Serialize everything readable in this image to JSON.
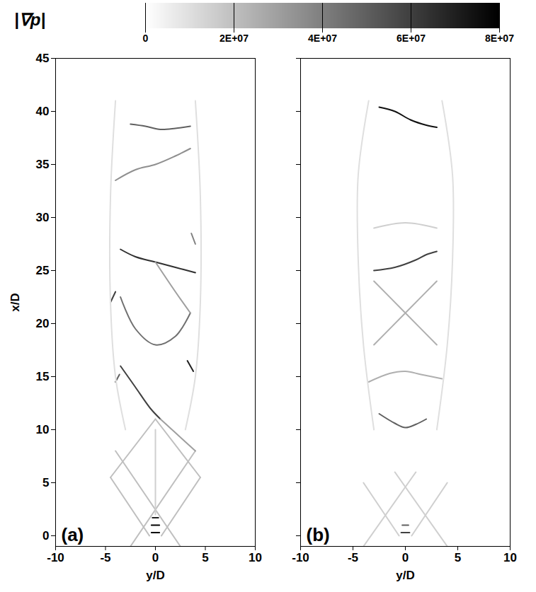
{
  "chart_data": {
    "type": "contour",
    "colorbar": {
      "label": "|∇p|",
      "range": [
        0,
        80000000
      ],
      "colors": [
        "#ffffff",
        "#000000"
      ],
      "ticks": [
        0,
        {
          "value": 20000000,
          "label": "2E+07"
        },
        {
          "value": 40000000,
          "label": "4E+07"
        },
        {
          "value": 60000000,
          "label": "6E+07"
        },
        {
          "value": 80000000,
          "label": "8E+07"
        }
      ]
    },
    "panels": [
      {
        "label": "(a)",
        "xlabel": "y/D",
        "ylabel": "x/D",
        "xlim": [
          -10,
          10
        ],
        "xticks": [
          -10,
          -5,
          0,
          5,
          10
        ],
        "ylim": [
          -1,
          45
        ],
        "yticks": [
          0,
          5,
          10,
          15,
          20,
          25,
          30,
          35,
          40,
          45
        ],
        "contours": [
          {
            "x": [
              -0.4,
              0.4
            ],
            "y": [
              0.3,
              0.3
            ],
            "value": 80000000
          },
          {
            "x": [
              -0.4,
              0.4
            ],
            "y": [
              1.0,
              1.0
            ],
            "value": 80000000
          },
          {
            "x": [
              -0.3,
              0.3
            ],
            "y": [
              1.7,
              1.7
            ],
            "value": 70000000
          },
          {
            "x": [
              -0.6,
              -4.5
            ],
            "y": [
              0,
              5.5
            ],
            "value": 20000000
          },
          {
            "x": [
              0.6,
              4.5
            ],
            "y": [
              0,
              5.5
            ],
            "value": 20000000
          },
          {
            "x": [
              -2.5,
              4
            ],
            "y": [
              -1,
              8
            ],
            "value": 20000000
          },
          {
            "x": [
              2.5,
              -4
            ],
            "y": [
              -1,
              8
            ],
            "value": 20000000
          },
          {
            "x": [
              -4.5,
              0
            ],
            "y": [
              5.5,
              11
            ],
            "value": 20000000
          },
          {
            "x": [
              4.5,
              0
            ],
            "y": [
              5.5,
              11
            ],
            "value": 20000000
          },
          {
            "x": [
              0,
              0,
              0
            ],
            "y": [
              2,
              6,
              10
            ],
            "value": 15000000
          },
          {
            "x": [
              -3.5,
              -2,
              -0.5,
              0.5
            ],
            "y": [
              16,
              14,
              12,
              11
            ],
            "value": 60000000
          },
          {
            "x": [
              0.5,
              4
            ],
            "y": [
              11,
              8
            ],
            "value": 30000000
          },
          {
            "x": [
              -3.5,
              -2,
              0,
              2,
              3.5
            ],
            "y": [
              22.5,
              19.5,
              18,
              18.8,
              21
            ],
            "value": 45000000
          },
          {
            "x": [
              -3.5,
              -2,
              0,
              2,
              4
            ],
            "y": [
              27,
              26.3,
              25.8,
              25.3,
              24.8
            ],
            "value": 65000000
          },
          {
            "x": [
              0,
              2,
              3.5
            ],
            "y": [
              25.8,
              23,
              21
            ],
            "value": 30000000
          },
          {
            "x": [
              -4,
              -2,
              0,
              2,
              3.5
            ],
            "y": [
              33.5,
              34.5,
              35,
              35.8,
              36.5
            ],
            "value": 35000000
          },
          {
            "x": [
              -2.5,
              -1,
              0.5,
              2,
              3.5
            ],
            "y": [
              38.8,
              38.6,
              38.3,
              38.4,
              38.6
            ],
            "value": 50000000
          },
          {
            "x": [
              -4.5,
              -4
            ],
            "y": [
              22,
              23
            ],
            "value": 60000000
          },
          {
            "x": [
              3.2,
              3.8
            ],
            "y": [
              16.5,
              15.5
            ],
            "value": 70000000
          },
          {
            "x": [
              -4,
              -3.6
            ],
            "y": [
              14.5,
              15.2
            ],
            "value": 50000000
          },
          {
            "x": [
              3.6,
              4
            ],
            "y": [
              28.5,
              27.5
            ],
            "value": 40000000
          },
          {
            "x": [
              -3,
              -4,
              -4.5,
              -4.5,
              -4
            ],
            "y": [
              10,
              15,
              22,
              32,
              41
            ],
            "value": 10000000
          },
          {
            "x": [
              3,
              4,
              4.5,
              4.5,
              4
            ],
            "y": [
              10,
              15,
              22,
              32,
              41
            ],
            "value": 10000000
          }
        ]
      },
      {
        "label": "(b)",
        "xlabel": "y/D",
        "xlim": [
          -10,
          10
        ],
        "xticks": [
          -10,
          -5,
          0,
          5,
          10
        ],
        "ylim": [
          -1,
          45
        ],
        "yticks": [
          0,
          5,
          10,
          15,
          20,
          25,
          30,
          35,
          40,
          45
        ],
        "tick_labels": "x",
        "contours": [
          {
            "x": [
              -0.4,
              0.4
            ],
            "y": [
              0.3,
              0.3
            ],
            "value": 60000000
          },
          {
            "x": [
              -0.3,
              0.3
            ],
            "y": [
              1.0,
              1.0
            ],
            "value": 50000000
          },
          {
            "x": [
              -0.6,
              -4
            ],
            "y": [
              0,
              5
            ],
            "value": 15000000
          },
          {
            "x": [
              0.6,
              4
            ],
            "y": [
              0,
              5
            ],
            "value": 15000000
          },
          {
            "x": [
              -4,
              1
            ],
            "y": [
              -1,
              6
            ],
            "value": 15000000
          },
          {
            "x": [
              4,
              -1
            ],
            "y": [
              -1,
              6
            ],
            "value": 15000000
          },
          {
            "x": [
              -2.5,
              -1,
              0,
              1,
              2
            ],
            "y": [
              11.5,
              10.6,
              10.2,
              10.5,
              11
            ],
            "value": 50000000
          },
          {
            "x": [
              -3.5,
              -1.5,
              0,
              1.5,
              3.5
            ],
            "y": [
              14.5,
              15.3,
              15.5,
              15.2,
              14.8
            ],
            "value": 25000000
          },
          {
            "x": [
              -3,
              0,
              3
            ],
            "y": [
              24,
              21,
              18
            ],
            "value": 25000000
          },
          {
            "x": [
              -3,
              0,
              3
            ],
            "y": [
              18,
              21,
              24
            ],
            "value": 25000000
          },
          {
            "x": [
              -3,
              -1,
              1,
              2,
              3
            ],
            "y": [
              25,
              25.3,
              26,
              26.5,
              26.8
            ],
            "value": 60000000
          },
          {
            "x": [
              -3,
              0,
              3
            ],
            "y": [
              29,
              29.5,
              29
            ],
            "value": 15000000
          },
          {
            "x": [
              -2.5,
              -1,
              0.5,
              2,
              3
            ],
            "y": [
              40.4,
              40,
              39.2,
              38.7,
              38.5
            ],
            "value": 75000000
          },
          {
            "x": [
              -3,
              -4,
              -4.5,
              -4.5,
              -3.5
            ],
            "y": [
              10,
              18,
              26,
              34,
              41
            ],
            "value": 10000000
          },
          {
            "x": [
              3,
              4,
              4.5,
              4.5,
              3.5
            ],
            "y": [
              10,
              18,
              26,
              34,
              41
            ],
            "value": 10000000
          }
        ]
      }
    ]
  }
}
